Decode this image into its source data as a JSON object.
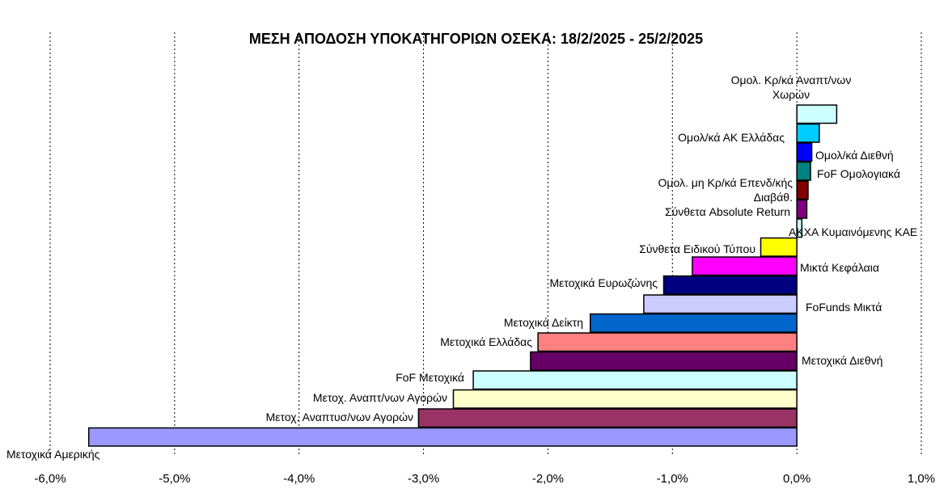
{
  "chart_data": {
    "type": "bar",
    "orientation": "horizontal",
    "title": "ΜΕΣΗ ΑΠΟΔΟΣΗ ΥΠΟΚΑΤΗΓΟΡΙΩΝ ΟΣΕΚΑ: 18/2/2025 - 25/2/2025",
    "xlabel": "",
    "ylabel": "",
    "xlim": [
      -6.0,
      1.0
    ],
    "x_ticks": [
      "-6,0%",
      "-5,0%",
      "-4,0%",
      "-3,0%",
      "-2,0%",
      "-1,0%",
      "0,0%",
      "1,0%"
    ],
    "grid": "vertical dashed",
    "legend": "none",
    "bars": [
      {
        "label": [
          "Ομολ. Κρ/κά Αναπτ/νων",
          "Χωρών"
        ],
        "value": 0.32,
        "color": "#CCFFFF"
      },
      {
        "label": [
          "Ομολ/κά ΑΚ Ελλάδας"
        ],
        "value": 0.18,
        "color": "#00CCFF"
      },
      {
        "label": [
          "Ομολ/κά Διεθνή"
        ],
        "value": 0.12,
        "color": "#0000FF"
      },
      {
        "label": [
          "FoF Ομολογιακά"
        ],
        "value": 0.11,
        "color": "#008080"
      },
      {
        "label": [
          "Ομολ. μη Κρ/κά Επενδ/κής",
          "Διαβάθ."
        ],
        "value": 0.09,
        "color": "#800000"
      },
      {
        "label": [
          "Σύνθετα Absolute Return"
        ],
        "value": 0.08,
        "color": "#800080"
      },
      {
        "label": [
          "ΑΚΧΑ Κυμαινόμενης ΚΑΕ"
        ],
        "value": 0.04,
        "color": "#CCFFFF"
      },
      {
        "label": [
          "Σύνθετα Ειδικού Τύπου"
        ],
        "value": -0.29,
        "color": "#FFFF00"
      },
      {
        "label": [
          "Μικτά Κεφάλαια"
        ],
        "value": -0.84,
        "color": "#FF00FF"
      },
      {
        "label": [
          "Μετοχικά Ευρωζώνης"
        ],
        "value": -1.07,
        "color": "#000080"
      },
      {
        "label": [
          "FoFunds Μικτά"
        ],
        "value": -1.23,
        "color": "#CCCCFF"
      },
      {
        "label": [
          "Μετοχικά Δείκτη"
        ],
        "value": -1.66,
        "color": "#0066CC"
      },
      {
        "label": [
          "Μετοχικά Ελλάδας"
        ],
        "value": -2.08,
        "color": "#FF8080"
      },
      {
        "label": [
          "Μετοχικά Διεθνή"
        ],
        "value": -2.14,
        "color": "#660066"
      },
      {
        "label": [
          "FoF Μετοχικά"
        ],
        "value": -2.6,
        "color": "#CCFFFF"
      },
      {
        "label": [
          "Μετοχ. Αναπτ/νων Αγορών"
        ],
        "value": -2.76,
        "color": "#FFFFCC"
      },
      {
        "label": [
          "Μετοχ. Αναπτυσ/νων Αγορών"
        ],
        "value": -3.04,
        "color": "#993366"
      },
      {
        "label": [
          "Μετοχικά Αμερικής"
        ],
        "value": -5.69,
        "color": "#9999FF"
      }
    ]
  }
}
